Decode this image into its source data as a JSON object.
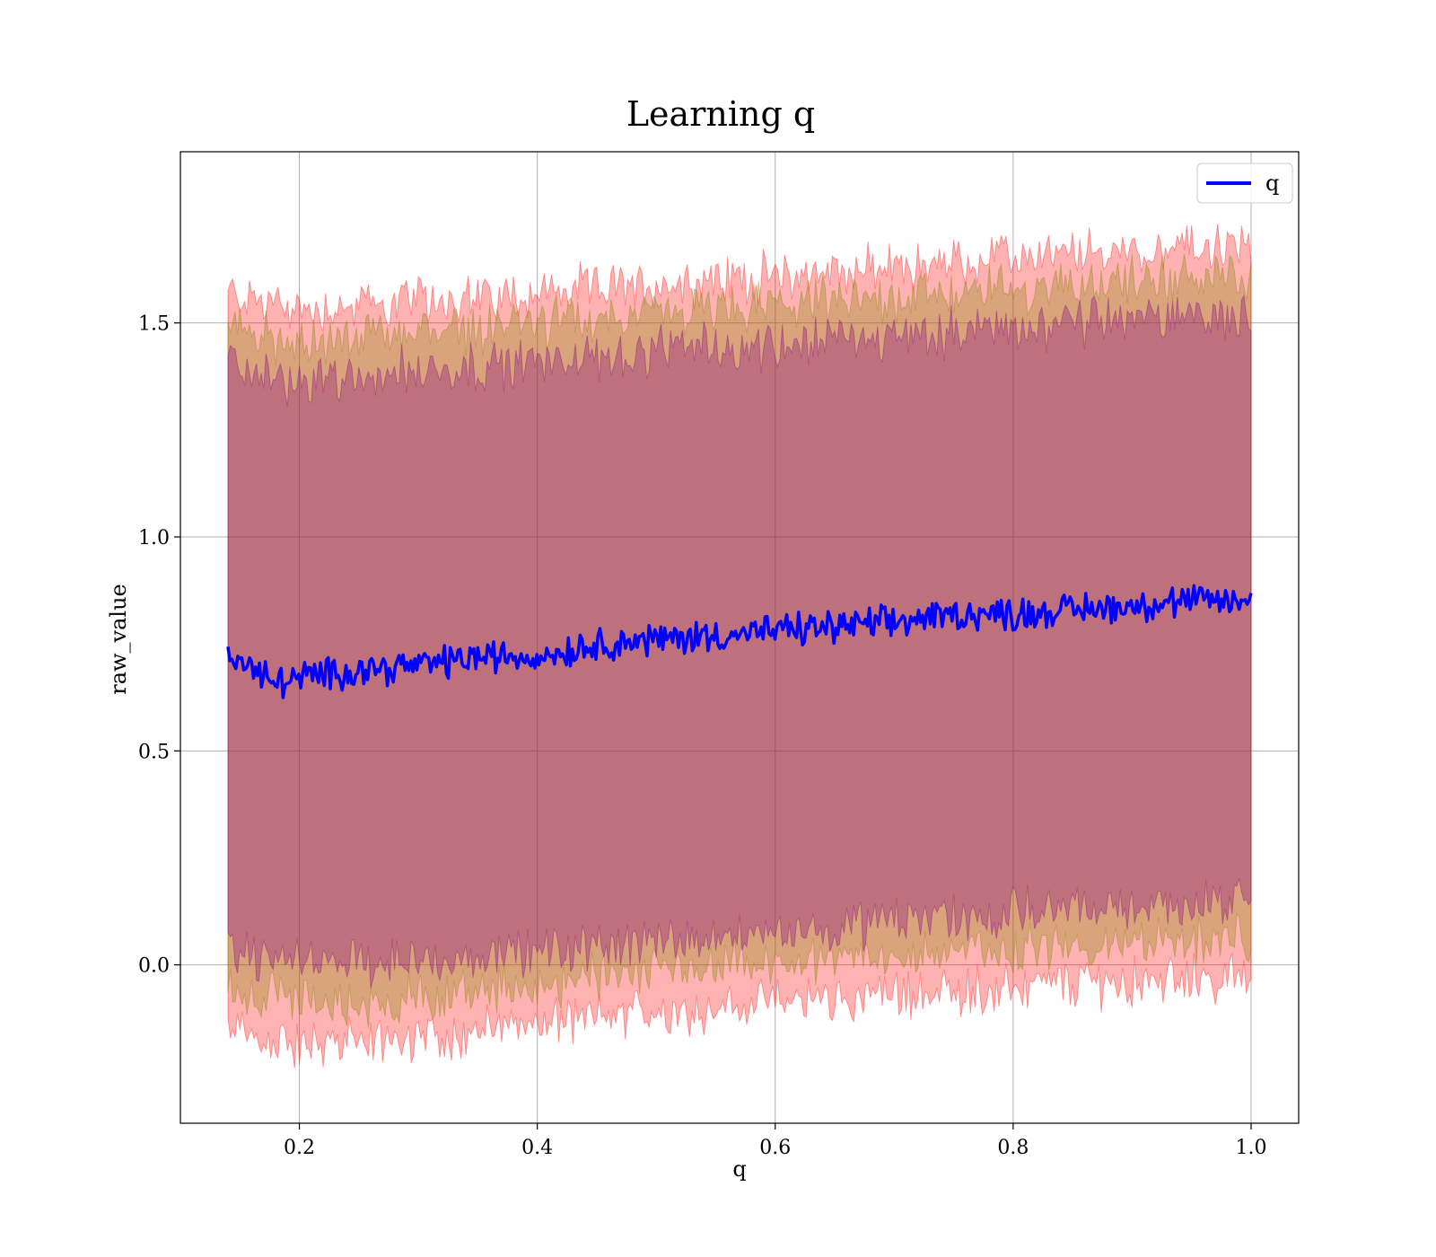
{
  "chart_data": {
    "type": "line",
    "title": "Learning q",
    "xlabel": "q",
    "ylabel": "raw_value",
    "xlim": [
      0.1,
      1.04
    ],
    "ylim": [
      -0.37,
      1.9
    ],
    "xticks": [
      0.2,
      0.4,
      0.6,
      0.8,
      1.0
    ],
    "xtick_labels": [
      "0.2",
      "0.4",
      "0.6",
      "0.8",
      "1.0"
    ],
    "yticks": [
      0.0,
      0.5,
      1.0,
      1.5
    ],
    "ytick_labels": [
      "0.0",
      "0.5",
      "1.0",
      "1.5"
    ],
    "grid": true,
    "legend": {
      "position": "top-right",
      "entries": [
        "q"
      ]
    },
    "x_range": [
      0.14,
      1.0
    ],
    "series": [
      {
        "name": "q",
        "color": "#0000ff",
        "x": [
          0.14,
          0.16,
          0.18,
          0.2,
          0.25,
          0.3,
          0.35,
          0.4,
          0.45,
          0.5,
          0.55,
          0.6,
          0.65,
          0.7,
          0.75,
          0.8,
          0.85,
          0.9,
          0.95,
          1.0
        ],
        "y": [
          0.73,
          0.69,
          0.66,
          0.67,
          0.69,
          0.7,
          0.72,
          0.72,
          0.75,
          0.76,
          0.77,
          0.78,
          0.79,
          0.8,
          0.82,
          0.82,
          0.83,
          0.84,
          0.85,
          0.85
        ]
      }
    ],
    "bands": [
      {
        "color": "#ff0000",
        "opacity": 0.3,
        "x": [
          0.14,
          0.2,
          0.3,
          0.4,
          0.5,
          0.6,
          0.7,
          0.8,
          0.9,
          1.0
        ],
        "upper": [
          1.57,
          1.53,
          1.55,
          1.57,
          1.59,
          1.61,
          1.63,
          1.65,
          1.67,
          1.68
        ],
        "lower": [
          -0.16,
          -0.19,
          -0.17,
          -0.14,
          -0.11,
          -0.09,
          -0.07,
          -0.05,
          -0.04,
          -0.03
        ]
      },
      {
        "color": "#808000",
        "opacity": 0.3,
        "x": [
          0.14,
          0.2,
          0.3,
          0.4,
          0.5,
          0.6,
          0.7,
          0.8,
          0.9,
          1.0
        ],
        "upper": [
          1.49,
          1.45,
          1.48,
          1.5,
          1.52,
          1.54,
          1.56,
          1.58,
          1.6,
          1.61
        ],
        "lower": [
          -0.05,
          -0.09,
          -0.08,
          -0.05,
          -0.02,
          0.0,
          0.02,
          0.04,
          0.05,
          0.06
        ]
      },
      {
        "color": "#800080",
        "opacity": 0.3,
        "x": [
          0.14,
          0.2,
          0.3,
          0.4,
          0.5,
          0.6,
          0.7,
          0.8,
          0.9,
          1.0
        ],
        "upper": [
          1.4,
          1.36,
          1.39,
          1.41,
          1.43,
          1.45,
          1.47,
          1.49,
          1.51,
          1.52
        ],
        "lower": [
          0.03,
          0.0,
          0.01,
          0.03,
          0.06,
          0.08,
          0.1,
          0.12,
          0.14,
          0.15
        ]
      }
    ]
  }
}
